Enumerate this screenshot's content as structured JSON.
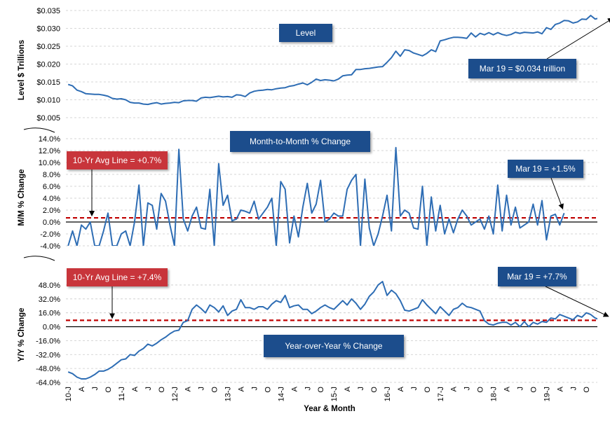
{
  "chart_data": {
    "type": "line",
    "xlabel": "Year & Month",
    "x_tick_labels": [
      "10-J",
      "A",
      "J",
      "O",
      "11-J",
      "A",
      "J",
      "O",
      "12-J",
      "A",
      "J",
      "O",
      "13-J",
      "A",
      "J",
      "O",
      "14-J",
      "A",
      "J",
      "O",
      "15-J",
      "A",
      "J",
      "O",
      "16-J",
      "A",
      "J",
      "O",
      "17-J",
      "A",
      "J",
      "O",
      "18-J",
      "A",
      "J",
      "O",
      "19-J",
      "A",
      "J",
      "O"
    ],
    "x_range": [
      "2010-01",
      "2019-12"
    ],
    "series_color": "#2E6DB4",
    "avg_line_color": "#C00000",
    "panels": [
      {
        "id": "level",
        "ylabel": "Level $ Trillions",
        "title": "Level",
        "ylim": [
          0.005,
          0.035
        ],
        "y_ticks": [
          0.005,
          0.01,
          0.015,
          0.02,
          0.025,
          0.03,
          0.035
        ],
        "y_tick_labels": [
          "$0.005",
          "$0.010",
          "$0.015",
          "$0.020",
          "$0.025",
          "$0.030",
          "$0.035"
        ],
        "annotation": "Mar 19 = $0.034 trillion",
        "values": [
          0.0143,
          0.0139,
          0.0127,
          0.0123,
          0.0117,
          0.0116,
          0.0115,
          0.0115,
          0.0113,
          0.011,
          0.0104,
          0.0102,
          0.0103,
          0.01,
          0.0093,
          0.0091,
          0.0091,
          0.0088,
          0.0087,
          0.009,
          0.0092,
          0.0088,
          0.009,
          0.0091,
          0.0093,
          0.0092,
          0.0097,
          0.0098,
          0.0098,
          0.0096,
          0.0105,
          0.0107,
          0.0106,
          0.0108,
          0.011,
          0.0108,
          0.0109,
          0.0107,
          0.0114,
          0.0113,
          0.0109,
          0.0119,
          0.0124,
          0.0126,
          0.0127,
          0.0129,
          0.0128,
          0.0131,
          0.0133,
          0.0134,
          0.0138,
          0.014,
          0.0144,
          0.0147,
          0.0142,
          0.0149,
          0.0158,
          0.0154,
          0.0156,
          0.0155,
          0.0153,
          0.0158,
          0.0167,
          0.0169,
          0.017,
          0.0185,
          0.0185,
          0.0187,
          0.0188,
          0.019,
          0.0192,
          0.0193,
          0.0205,
          0.0218,
          0.0236,
          0.0222,
          0.024,
          0.0238,
          0.0231,
          0.0227,
          0.0223,
          0.023,
          0.024,
          0.0235,
          0.0265,
          0.0268,
          0.0272,
          0.0275,
          0.0275,
          0.0274,
          0.0272,
          0.0287,
          0.0276,
          0.0286,
          0.0282,
          0.0288,
          0.0282,
          0.0288,
          0.0283,
          0.028,
          0.0283,
          0.0289,
          0.0286,
          0.0289,
          0.0288,
          0.0287,
          0.029,
          0.0285,
          0.0302,
          0.0297,
          0.0311,
          0.0315,
          0.0322,
          0.0321,
          0.0315,
          0.0318,
          0.0326,
          0.0325,
          0.0336,
          0.0326,
          0.0329,
          0.0334,
          0.0332,
          0.0336
        ]
      },
      {
        "id": "mom",
        "ylabel": "M/M % Change",
        "title": "Month-to-Month % Change",
        "ylim": [
          -4.0,
          14.0
        ],
        "y_ticks": [
          -4,
          -2,
          0,
          2,
          4,
          6,
          8,
          10,
          12,
          14
        ],
        "y_tick_labels": [
          "-4.0%",
          "-2.0%",
          "0.0%",
          "2.0%",
          "4.0%",
          "6.0%",
          "8.0%",
          "10.0%",
          "12.0%",
          "14.0%"
        ],
        "avg_line_value": 0.7,
        "avg_label": "10-Yr Avg Line = +0.7%",
        "annotation": "Mar 19 = +1.5%",
        "values": [
          -4.0,
          -1.5,
          -4.0,
          -0.5,
          -1.2,
          0.0,
          -4.0,
          -4.0,
          -1.5,
          1.5,
          -4.0,
          -4.0,
          -2.0,
          -1.5,
          -4.0,
          0.0,
          6.2,
          -4.0,
          3.2,
          2.8,
          -1.2,
          4.8,
          3.5,
          -0.5,
          -4.0,
          12.2,
          0.5,
          -1.5,
          1.0,
          2.5,
          -1.0,
          -1.2,
          5.5,
          -4.0,
          9.8,
          2.8,
          4.5,
          0.2,
          0.5,
          2.0,
          1.8,
          1.5,
          3.5,
          0.5,
          1.5,
          2.5,
          4.0,
          -4.0,
          6.8,
          5.5,
          -3.5,
          1.0,
          -2.5,
          2.5,
          6.5,
          1.5,
          3.0,
          7.0,
          0.0,
          0.5,
          1.5,
          1.0,
          1.0,
          5.5,
          7.0,
          8.0,
          -4.0,
          7.2,
          -1.0,
          -4.0,
          -2.0,
          1.0,
          4.5,
          -1.5,
          12.5,
          1.0,
          2.0,
          1.5,
          -1.0,
          -1.2,
          6.0,
          -4.0,
          4.2,
          -1.5,
          2.8,
          -2.0,
          0.5,
          -1.8,
          0.5,
          2.0,
          1.0,
          -0.5,
          0.0,
          0.5,
          -1.2,
          1.0,
          -2.0,
          6.2,
          -1.5,
          4.5,
          -0.5,
          2.5,
          -1.0,
          -0.5,
          0.0,
          3.0,
          -0.5,
          3.6,
          -3.0,
          1.0,
          1.3,
          -0.5,
          1.5
        ]
      },
      {
        "id": "yoy",
        "ylabel": "Y/Y % Change",
        "title": "Year-over-Year % Change",
        "ylim": [
          -64.0,
          56.0
        ],
        "y_ticks": [
          -64,
          -48,
          -32,
          -16,
          0,
          16,
          32,
          48
        ],
        "y_tick_labels": [
          "-64.0%",
          "-48.0%",
          "-32.0%",
          "-16.0%",
          "0.0%",
          "16.0%",
          "32.0%",
          "48.0%"
        ],
        "avg_line_value": 7.4,
        "avg_label": "10-Yr Avg Line = +7.4%",
        "annotation": "Mar 19 = +7.7%",
        "values": [
          -52,
          -54,
          -58,
          -60,
          -60,
          -58,
          -55,
          -51,
          -51,
          -49,
          -46,
          -42,
          -38,
          -37,
          -32,
          -33,
          -28,
          -25,
          -20,
          -22,
          -19,
          -15,
          -12,
          -8,
          -5,
          -4,
          5,
          7,
          20,
          25,
          21,
          16,
          25,
          22,
          17,
          24,
          13,
          18,
          20,
          31,
          22,
          22,
          20,
          23,
          23,
          20,
          26,
          30,
          28,
          36,
          22,
          24,
          25,
          20,
          20,
          15,
          18,
          22,
          25,
          22,
          20,
          25,
          30,
          25,
          32,
          27,
          20,
          26,
          35,
          40,
          48,
          52,
          36,
          42,
          38,
          30,
          19,
          18,
          20,
          22,
          31,
          25,
          20,
          15,
          23,
          18,
          13,
          20,
          22,
          27,
          23,
          22,
          20,
          18,
          7,
          3,
          2,
          4,
          5,
          5,
          2,
          5,
          0,
          6,
          0,
          5,
          3,
          6,
          5,
          10,
          9,
          14,
          12,
          10,
          8,
          13,
          11,
          16,
          14,
          10,
          8,
          13,
          7
        ]
      }
    ]
  }
}
